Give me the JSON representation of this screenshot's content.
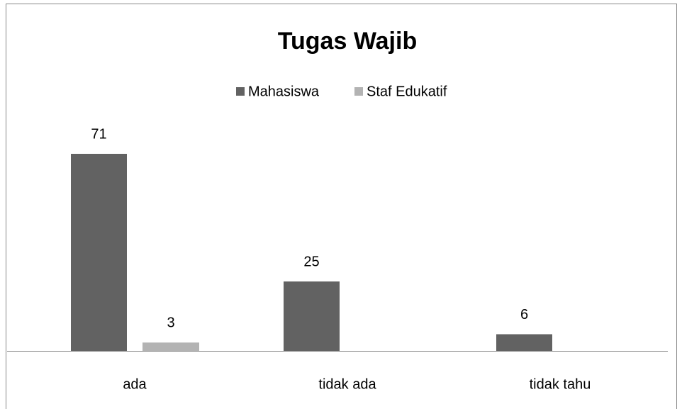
{
  "chart_data": {
    "type": "bar",
    "title": "Tugas Wajib",
    "categories": [
      "ada",
      "tidak ada",
      "tidak tahu"
    ],
    "series": [
      {
        "name": "Mahasiswa",
        "color": "#626262",
        "values": [
          71,
          25,
          6
        ]
      },
      {
        "name": "Staf Edukatif",
        "color": "#b3b3b3",
        "values": [
          3,
          null,
          null
        ]
      }
    ],
    "legend": "top",
    "data_labels": true
  }
}
